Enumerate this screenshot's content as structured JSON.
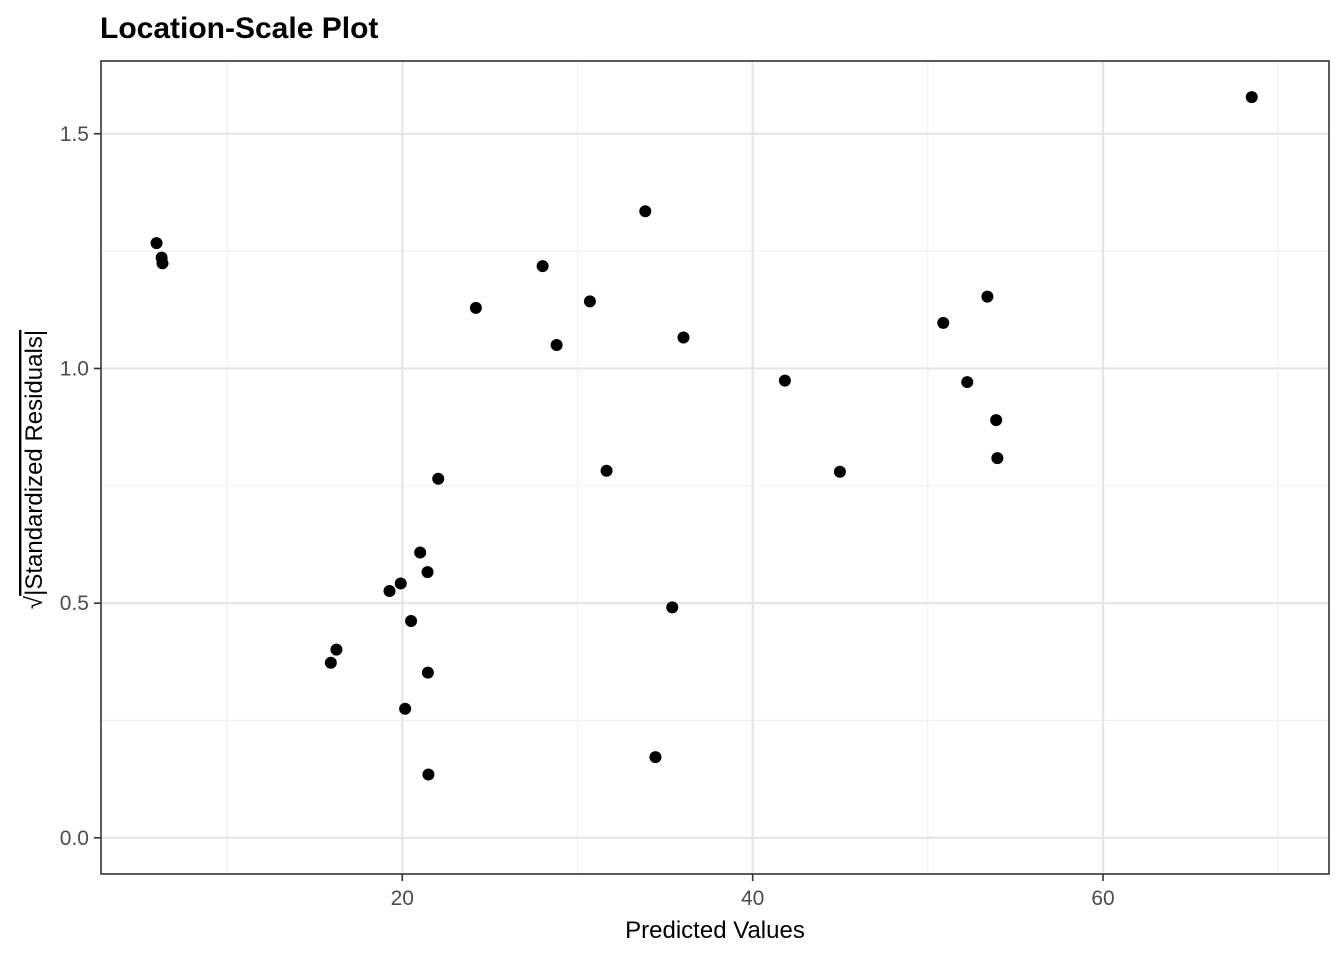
{
  "chart_data": {
    "type": "scatter",
    "title": "Location-Scale Plot",
    "xlabel": "Predicted Values",
    "ylabel_prefix": "√",
    "ylabel": "|Standardized Residuals|",
    "xlim": [
      2.8,
      72.9
    ],
    "ylim": [
      -0.077,
      1.655
    ],
    "x_ticks": [
      20,
      40,
      60
    ],
    "x_tick_labels": [
      "20",
      "40",
      "60"
    ],
    "x_minor_ticks": [
      10,
      30,
      50,
      70
    ],
    "y_ticks": [
      0.0,
      0.5,
      1.0,
      1.5
    ],
    "y_tick_labels": [
      "0.0",
      "0.5",
      "1.0",
      "1.5"
    ],
    "y_minor_ticks": [
      0.25,
      0.75,
      1.25
    ],
    "grid": true,
    "legend": "none",
    "point_color": "#000000",
    "points": [
      {
        "x": 5.97,
        "y": 1.267
      },
      {
        "x": 6.26,
        "y": 1.236
      },
      {
        "x": 6.31,
        "y": 1.224
      },
      {
        "x": 15.92,
        "y": 0.373
      },
      {
        "x": 16.24,
        "y": 0.401
      },
      {
        "x": 19.27,
        "y": 0.526
      },
      {
        "x": 19.91,
        "y": 0.542
      },
      {
        "x": 20.16,
        "y": 0.275
      },
      {
        "x": 20.5,
        "y": 0.462
      },
      {
        "x": 21.02,
        "y": 0.608
      },
      {
        "x": 21.44,
        "y": 0.566
      },
      {
        "x": 21.46,
        "y": 0.352
      },
      {
        "x": 21.49,
        "y": 0.135
      },
      {
        "x": 22.05,
        "y": 0.765
      },
      {
        "x": 24.2,
        "y": 1.129
      },
      {
        "x": 28.01,
        "y": 1.218
      },
      {
        "x": 28.81,
        "y": 1.05
      },
      {
        "x": 30.71,
        "y": 1.143
      },
      {
        "x": 31.66,
        "y": 0.782
      },
      {
        "x": 33.87,
        "y": 1.335
      },
      {
        "x": 34.45,
        "y": 0.172
      },
      {
        "x": 35.41,
        "y": 0.491
      },
      {
        "x": 36.05,
        "y": 1.066
      },
      {
        "x": 41.84,
        "y": 0.974
      },
      {
        "x": 44.98,
        "y": 0.78
      },
      {
        "x": 50.88,
        "y": 1.097
      },
      {
        "x": 52.25,
        "y": 0.971
      },
      {
        "x": 53.4,
        "y": 1.153
      },
      {
        "x": 53.9,
        "y": 0.89
      },
      {
        "x": 53.97,
        "y": 0.809
      },
      {
        "x": 68.49,
        "y": 1.578
      }
    ]
  }
}
